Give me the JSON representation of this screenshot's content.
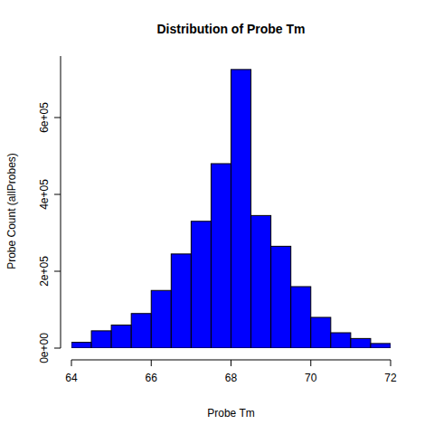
{
  "chart_data": {
    "type": "histogram",
    "title": "Distribution of Probe Tm",
    "x_label": "Probe Tm",
    "y_label": "Probe Count (allProbes)",
    "bins": [
      64,
      64.5,
      65,
      65.5,
      66,
      66.5,
      67,
      67.5,
      68,
      68.5,
      69,
      69.5,
      70,
      70.5,
      71,
      71.5,
      72
    ],
    "counts": [
      15000,
      45000,
      60000,
      90000,
      150000,
      245000,
      330000,
      480000,
      725000,
      345000,
      265000,
      160000,
      80000,
      40000,
      25000,
      12000
    ],
    "color": "#0000ff",
    "xlim": [
      64,
      72
    ],
    "xticks": [
      64,
      66,
      68,
      70,
      72
    ],
    "ylim": [
      0,
      760000
    ],
    "yticks": [
      {
        "value": 0,
        "label": "0e+00"
      },
      {
        "value": 200000,
        "label": "2e+05"
      },
      {
        "value": 400000,
        "label": "4e+05"
      },
      {
        "value": 600000,
        "label": "6e+05"
      }
    ],
    "grid": false
  }
}
